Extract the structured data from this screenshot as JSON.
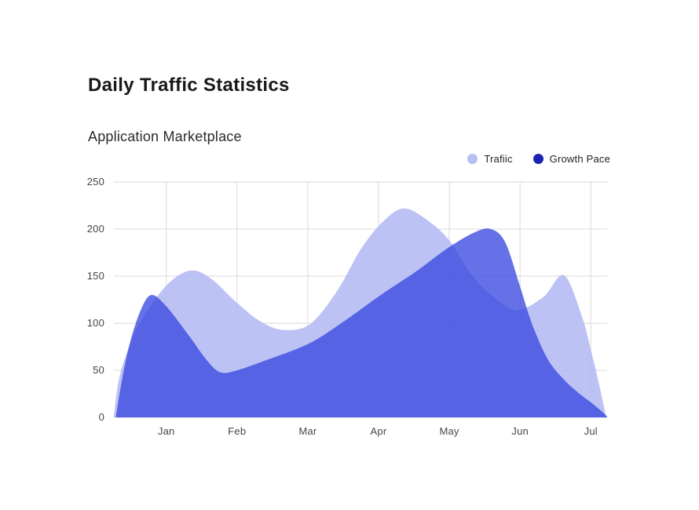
{
  "page": {
    "background_color": "#ffffff"
  },
  "header": {
    "title": "Daily Traffic Statistics",
    "subtitle": "Application Marketplace"
  },
  "legend": [
    {
      "label": "Trafiic",
      "dot_color": "#b7bef3"
    },
    {
      "label": "Growth Pace",
      "dot_color": "#1c22b2"
    }
  ],
  "chart_data": {
    "type": "area",
    "title": "Daily Traffic Statistics",
    "subtitle": "Application Marketplace",
    "grid": true,
    "grid_color": "#d9d9d9",
    "legend_position": "top-right",
    "x_axis": {
      "tick_labels": [
        "Jan",
        "Feb",
        "Mar",
        "Apr",
        "May",
        "Jun",
        "Jul"
      ],
      "tick_positions": [
        1,
        2,
        3,
        4,
        5,
        6,
        7
      ],
      "range": [
        0.26,
        7.23
      ]
    },
    "y_axis": {
      "ticks": [
        0,
        50,
        100,
        150,
        200,
        250
      ],
      "tick_labels": [
        "0",
        "50",
        "100",
        "150",
        "200",
        "250"
      ],
      "range": [
        0,
        250
      ]
    },
    "series": [
      {
        "name": "Trafiic",
        "color": "#b0b8f2",
        "fill_opacity": 0.85,
        "points": [
          [
            0.26,
            2
          ],
          [
            0.33,
            40
          ],
          [
            0.46,
            72
          ],
          [
            0.64,
            102
          ],
          [
            1.0,
            140
          ],
          [
            1.34,
            156
          ],
          [
            1.64,
            147
          ],
          [
            1.98,
            123
          ],
          [
            2.31,
            103
          ],
          [
            2.64,
            93
          ],
          [
            3.03,
            99
          ],
          [
            3.42,
            135
          ],
          [
            3.76,
            180
          ],
          [
            4.09,
            210
          ],
          [
            4.37,
            222
          ],
          [
            4.7,
            209
          ],
          [
            5.0,
            188
          ],
          [
            5.31,
            152
          ],
          [
            5.64,
            127
          ],
          [
            5.96,
            114
          ],
          [
            6.33,
            128
          ],
          [
            6.62,
            151
          ],
          [
            6.87,
            108
          ],
          [
            7.0,
            72
          ],
          [
            7.12,
            34
          ],
          [
            7.21,
            3
          ]
        ]
      },
      {
        "name": "Growth Pace",
        "color": "#3644df",
        "fill_opacity": 0.76,
        "points": [
          [
            0.29,
            2
          ],
          [
            0.38,
            42
          ],
          [
            0.49,
            80
          ],
          [
            0.64,
            114
          ],
          [
            0.79,
            130
          ],
          [
            1.0,
            118
          ],
          [
            1.31,
            88
          ],
          [
            1.56,
            62
          ],
          [
            1.76,
            48
          ],
          [
            2.0,
            50
          ],
          [
            2.42,
            61
          ],
          [
            3.03,
            79
          ],
          [
            3.53,
            103
          ],
          [
            4.03,
            130
          ],
          [
            4.53,
            155
          ],
          [
            5.0,
            181
          ],
          [
            5.37,
            197
          ],
          [
            5.59,
            200
          ],
          [
            5.79,
            186
          ],
          [
            6.0,
            139
          ],
          [
            6.17,
            99
          ],
          [
            6.39,
            62
          ],
          [
            6.61,
            41
          ],
          [
            6.81,
            27
          ],
          [
            7.0,
            16
          ],
          [
            7.16,
            6
          ],
          [
            7.23,
            1
          ]
        ]
      }
    ]
  }
}
